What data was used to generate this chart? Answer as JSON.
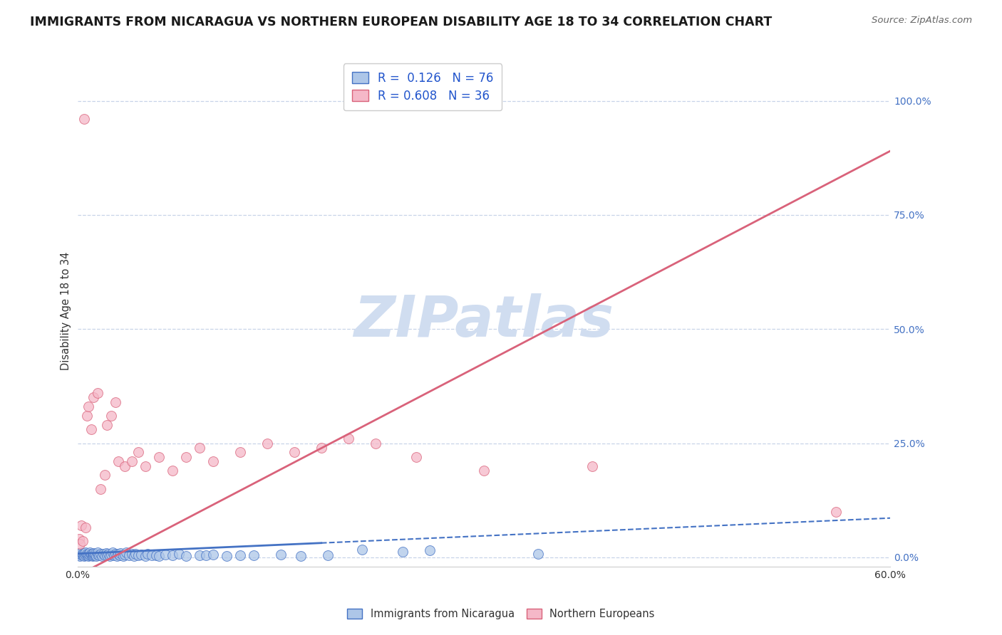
{
  "title": "IMMIGRANTS FROM NICARAGUA VS NORTHERN EUROPEAN DISABILITY AGE 18 TO 34 CORRELATION CHART",
  "source": "Source: ZipAtlas.com",
  "ylabel": "Disability Age 18 to 34",
  "xlim": [
    0,
    0.6
  ],
  "ylim": [
    -0.02,
    1.1
  ],
  "yticks": [
    0.0,
    0.25,
    0.5,
    0.75,
    1.0
  ],
  "ytick_labels": [
    "0.0%",
    "25.0%",
    "50.0%",
    "75.0%",
    "100.0%"
  ],
  "xtick_positions": [
    0.0,
    0.6
  ],
  "xtick_labels": [
    "0.0%",
    "60.0%"
  ],
  "blue_R": 0.126,
  "blue_N": 76,
  "pink_R": 0.608,
  "pink_N": 36,
  "blue_fill_color": "#adc6e8",
  "pink_fill_color": "#f5b8c8",
  "blue_edge_color": "#4472c4",
  "pink_edge_color": "#d9627a",
  "background_color": "#ffffff",
  "grid_color": "#c8d4e8",
  "watermark_color": "#d0ddf0",
  "legend_label_blue": "Immigrants from Nicaragua",
  "legend_label_pink": "Northern Europeans",
  "blue_line_color": "#4472c4",
  "pink_line_color": "#d9627a",
  "blue_line_solid_end": 0.18,
  "blue_line_intercept": 0.008,
  "blue_line_slope": 0.13,
  "pink_line_intercept": -0.04,
  "pink_line_slope": 1.55,
  "blue_scatter_x": [
    0.001,
    0.002,
    0.002,
    0.003,
    0.003,
    0.004,
    0.004,
    0.005,
    0.005,
    0.006,
    0.006,
    0.007,
    0.007,
    0.008,
    0.008,
    0.009,
    0.009,
    0.01,
    0.01,
    0.011,
    0.011,
    0.012,
    0.012,
    0.013,
    0.013,
    0.014,
    0.015,
    0.015,
    0.016,
    0.017,
    0.018,
    0.019,
    0.02,
    0.021,
    0.022,
    0.023,
    0.024,
    0.025,
    0.026,
    0.027,
    0.028,
    0.029,
    0.03,
    0.031,
    0.032,
    0.034,
    0.035,
    0.036,
    0.038,
    0.04,
    0.042,
    0.043,
    0.045,
    0.047,
    0.05,
    0.052,
    0.055,
    0.058,
    0.06,
    0.065,
    0.07,
    0.075,
    0.08,
    0.09,
    0.095,
    0.1,
    0.11,
    0.12,
    0.13,
    0.15,
    0.165,
    0.185,
    0.21,
    0.24,
    0.26,
    0.34
  ],
  "blue_scatter_y": [
    0.005,
    0.008,
    0.003,
    0.006,
    0.01,
    0.004,
    0.007,
    0.003,
    0.009,
    0.005,
    0.011,
    0.004,
    0.008,
    0.003,
    0.007,
    0.005,
    0.01,
    0.004,
    0.008,
    0.003,
    0.007,
    0.005,
    0.009,
    0.004,
    0.008,
    0.003,
    0.006,
    0.01,
    0.004,
    0.007,
    0.003,
    0.008,
    0.005,
    0.009,
    0.004,
    0.007,
    0.003,
    0.006,
    0.01,
    0.004,
    0.008,
    0.003,
    0.007,
    0.005,
    0.009,
    0.003,
    0.006,
    0.01,
    0.004,
    0.007,
    0.003,
    0.008,
    0.004,
    0.006,
    0.003,
    0.007,
    0.004,
    0.005,
    0.003,
    0.006,
    0.004,
    0.007,
    0.003,
    0.005,
    0.004,
    0.006,
    0.003,
    0.005,
    0.004,
    0.006,
    0.003,
    0.005,
    0.017,
    0.013,
    0.015,
    0.008
  ],
  "pink_scatter_x": [
    0.001,
    0.002,
    0.003,
    0.004,
    0.005,
    0.006,
    0.007,
    0.008,
    0.01,
    0.012,
    0.015,
    0.017,
    0.02,
    0.022,
    0.025,
    0.028,
    0.03,
    0.035,
    0.04,
    0.045,
    0.05,
    0.06,
    0.07,
    0.08,
    0.09,
    0.1,
    0.12,
    0.14,
    0.16,
    0.18,
    0.2,
    0.22,
    0.25,
    0.3,
    0.38,
    0.56
  ],
  "pink_scatter_y": [
    0.04,
    0.03,
    0.07,
    0.035,
    0.96,
    0.065,
    0.31,
    0.33,
    0.28,
    0.35,
    0.36,
    0.15,
    0.18,
    0.29,
    0.31,
    0.34,
    0.21,
    0.2,
    0.21,
    0.23,
    0.2,
    0.22,
    0.19,
    0.22,
    0.24,
    0.21,
    0.23,
    0.25,
    0.23,
    0.24,
    0.26,
    0.25,
    0.22,
    0.19,
    0.2,
    0.1
  ]
}
